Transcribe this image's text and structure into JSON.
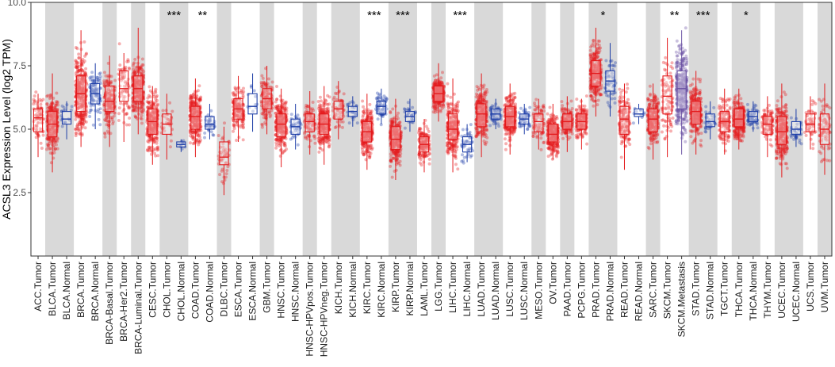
{
  "chart_data": {
    "type": "boxplot",
    "title": "",
    "xlabel": "",
    "ylabel": "ACSL3 Expression Level (log2 TPM)",
    "ylim": [
      0,
      10
    ],
    "yticks": [
      2.5,
      5.0,
      7.5,
      10.0
    ],
    "ytick_labels": [
      "2.5",
      "5.0",
      "7.5",
      "10.0"
    ],
    "grid": false,
    "legend": "none",
    "colors": {
      "tumor": "#e41a1c",
      "normal": "#1f3fa8",
      "metastasis": "#6a51a3",
      "shade": "#d9d9d9"
    },
    "groups": [
      {
        "label": "ACC",
        "significance": ""
      },
      {
        "label": "BLCA",
        "significance": ""
      },
      {
        "label": "BRCA",
        "significance": ""
      },
      {
        "label": "BRCA-Basal",
        "significance": ""
      },
      {
        "label": "BRCA-Her2",
        "significance": ""
      },
      {
        "label": "BRCA-Luminal",
        "significance": ""
      },
      {
        "label": "CESC",
        "significance": ""
      },
      {
        "label": "CHOL",
        "significance": "***"
      },
      {
        "label": "COAD",
        "significance": "**"
      },
      {
        "label": "DLBC",
        "significance": ""
      },
      {
        "label": "ESCA",
        "significance": ""
      },
      {
        "label": "GBM",
        "significance": ""
      },
      {
        "label": "HNSC",
        "significance": ""
      },
      {
        "label": "HNSC-HPVpos",
        "significance": ""
      },
      {
        "label": "HNSC-HPVneg",
        "significance": ""
      },
      {
        "label": "KICH",
        "significance": ""
      },
      {
        "label": "KIRC",
        "significance": "***"
      },
      {
        "label": "KIRP",
        "significance": "***"
      },
      {
        "label": "LAML",
        "significance": ""
      },
      {
        "label": "LGG",
        "significance": ""
      },
      {
        "label": "LIHC",
        "significance": "***"
      },
      {
        "label": "LUAD",
        "significance": ""
      },
      {
        "label": "LUSC",
        "significance": ""
      },
      {
        "label": "MESO",
        "significance": ""
      },
      {
        "label": "OV",
        "significance": ""
      },
      {
        "label": "PAAD",
        "significance": ""
      },
      {
        "label": "PCPG",
        "significance": ""
      },
      {
        "label": "PRAD",
        "significance": "*"
      },
      {
        "label": "READ",
        "significance": ""
      },
      {
        "label": "SARC",
        "significance": ""
      },
      {
        "label": "SKCM",
        "significance": "**"
      },
      {
        "label": "STAD",
        "significance": "***"
      },
      {
        "label": "TGCT",
        "significance": ""
      },
      {
        "label": "THCA",
        "significance": "*"
      },
      {
        "label": "THYM",
        "significance": ""
      },
      {
        "label": "UCEC",
        "significance": ""
      },
      {
        "label": "UCS",
        "significance": ""
      },
      {
        "label": "UVM",
        "significance": ""
      }
    ],
    "boxes": [
      {
        "label": "ACC.Tumor",
        "group": 0,
        "kind": "tumor",
        "q1": 4.9,
        "median": 5.45,
        "q3": 5.8,
        "whisker_low": 3.9,
        "whisker_high": 6.4,
        "n": 79
      },
      {
        "label": "BLCA.Tumor",
        "group": 1,
        "kind": "tumor",
        "q1": 4.7,
        "median": 5.2,
        "q3": 5.7,
        "whisker_low": 3.3,
        "whisker_high": 7.2,
        "n": 300
      },
      {
        "label": "BLCA.Normal",
        "group": 1,
        "kind": "normal",
        "q1": 5.2,
        "median": 5.4,
        "q3": 5.7,
        "whisker_low": 4.6,
        "whisker_high": 6.1,
        "n": 19
      },
      {
        "label": "BRCA.Tumor",
        "group": 2,
        "kind": "tumor",
        "q1": 5.7,
        "median": 6.4,
        "q3": 7.1,
        "whisker_low": 4.3,
        "whisker_high": 8.9,
        "n": 400
      },
      {
        "label": "BRCA.Normal",
        "group": 2,
        "kind": "normal",
        "q1": 6.0,
        "median": 6.4,
        "q3": 6.8,
        "whisker_low": 5.0,
        "whisker_high": 7.6,
        "n": 113
      },
      {
        "label": "BRCA-Basal.Tumor",
        "group": 3,
        "kind": "tumor",
        "q1": 5.7,
        "median": 6.1,
        "q3": 6.7,
        "whisker_low": 4.3,
        "whisker_high": 7.9,
        "n": 190
      },
      {
        "label": "BRCA-Her2.Tumor",
        "group": 4,
        "kind": "tumor",
        "q1": 6.1,
        "median": 6.6,
        "q3": 7.3,
        "whisker_low": 4.5,
        "whisker_high": 8.0,
        "n": 82
      },
      {
        "label": "BRCA-Luminal.Tumor",
        "group": 5,
        "kind": "tumor",
        "q1": 6.1,
        "median": 6.6,
        "q3": 7.1,
        "whisker_low": 4.8,
        "whisker_high": 9.0,
        "n": 300
      },
      {
        "label": "CESC.Tumor",
        "group": 6,
        "kind": "tumor",
        "q1": 4.8,
        "median": 5.3,
        "q3": 5.8,
        "whisker_low": 3.6,
        "whisker_high": 6.7,
        "n": 305
      },
      {
        "label": "CHOL.Tumor",
        "group": 7,
        "kind": "tumor",
        "q1": 4.8,
        "median": 5.2,
        "q3": 5.6,
        "whisker_low": 3.8,
        "whisker_high": 6.4,
        "n": 36
      },
      {
        "label": "CHOL.Normal",
        "group": 7,
        "kind": "normal",
        "q1": 4.3,
        "median": 4.4,
        "q3": 4.5,
        "whisker_low": 4.1,
        "whisker_high": 4.6,
        "n": 9
      },
      {
        "label": "COAD.Tumor",
        "group": 8,
        "kind": "tumor",
        "q1": 5.0,
        "median": 5.5,
        "q3": 5.9,
        "whisker_low": 3.9,
        "whisker_high": 7.0,
        "n": 300
      },
      {
        "label": "COAD.Normal",
        "group": 8,
        "kind": "normal",
        "q1": 5.0,
        "median": 5.2,
        "q3": 5.5,
        "whisker_low": 4.6,
        "whisker_high": 6.0,
        "n": 41
      },
      {
        "label": "DLBC.Tumor",
        "group": 9,
        "kind": "tumor",
        "q1": 3.6,
        "median": 3.9,
        "q3": 4.5,
        "whisker_low": 2.4,
        "whisker_high": 5.1,
        "n": 48
      },
      {
        "label": "ESCA.Tumor",
        "group": 10,
        "kind": "tumor",
        "q1": 5.4,
        "median": 5.8,
        "q3": 6.2,
        "whisker_low": 4.5,
        "whisker_high": 7.1,
        "n": 184
      },
      {
        "label": "ESCA.Normal",
        "group": 10,
        "kind": "normal",
        "q1": 5.6,
        "median": 5.9,
        "q3": 6.4,
        "whisker_low": 4.9,
        "whisker_high": 7.2,
        "n": 11
      },
      {
        "label": "GBM.Tumor",
        "group": 11,
        "kind": "tumor",
        "q1": 5.8,
        "median": 6.2,
        "q3": 6.6,
        "whisker_low": 4.8,
        "whisker_high": 7.5,
        "n": 153
      },
      {
        "label": "HNSC.Tumor",
        "group": 12,
        "kind": "tumor",
        "q1": 4.7,
        "median": 5.2,
        "q3": 5.6,
        "whisker_low": 3.5,
        "whisker_high": 6.6,
        "n": 300
      },
      {
        "label": "HNSC.Normal",
        "group": 12,
        "kind": "normal",
        "q1": 4.8,
        "median": 5.1,
        "q3": 5.4,
        "whisker_low": 4.2,
        "whisker_high": 6.0,
        "n": 44
      },
      {
        "label": "HNSC-HPVpos.Tumor",
        "group": 13,
        "kind": "tumor",
        "q1": 4.9,
        "median": 5.3,
        "q3": 5.6,
        "whisker_low": 4.0,
        "whisker_high": 6.5,
        "n": 98
      },
      {
        "label": "HNSC-HPVneg.Tumor",
        "group": 14,
        "kind": "tumor",
        "q1": 4.8,
        "median": 5.2,
        "q3": 5.6,
        "whisker_low": 3.6,
        "whisker_high": 6.7,
        "n": 300
      },
      {
        "label": "KICH.Tumor",
        "group": 15,
        "kind": "tumor",
        "q1": 5.4,
        "median": 5.8,
        "q3": 6.1,
        "whisker_low": 4.6,
        "whisker_high": 6.9,
        "n": 66
      },
      {
        "label": "KICH.Normal",
        "group": 15,
        "kind": "normal",
        "q1": 5.5,
        "median": 5.7,
        "q3": 5.9,
        "whisker_low": 5.1,
        "whisker_high": 6.3,
        "n": 25
      },
      {
        "label": "KIRC.Tumor",
        "group": 16,
        "kind": "tumor",
        "q1": 4.5,
        "median": 4.9,
        "q3": 5.3,
        "whisker_low": 3.4,
        "whisker_high": 6.4,
        "n": 300
      },
      {
        "label": "KIRC.Normal",
        "group": 16,
        "kind": "normal",
        "q1": 5.6,
        "median": 5.9,
        "q3": 6.1,
        "whisker_low": 5.2,
        "whisker_high": 6.6,
        "n": 72
      },
      {
        "label": "KIRP.Tumor",
        "group": 17,
        "kind": "tumor",
        "q1": 4.2,
        "median": 4.6,
        "q3": 5.1,
        "whisker_low": 3.0,
        "whisker_high": 6.2,
        "n": 290
      },
      {
        "label": "KIRP.Normal",
        "group": 17,
        "kind": "normal",
        "q1": 5.3,
        "median": 5.5,
        "q3": 5.7,
        "whisker_low": 4.9,
        "whisker_high": 6.2,
        "n": 32
      },
      {
        "label": "LAML.Tumor",
        "group": 18,
        "kind": "tumor",
        "q1": 4.1,
        "median": 4.4,
        "q3": 4.7,
        "whisker_low": 3.3,
        "whisker_high": 5.4,
        "n": 173
      },
      {
        "label": "LGG.Tumor",
        "group": 19,
        "kind": "tumor",
        "q1": 6.1,
        "median": 6.4,
        "q3": 6.7,
        "whisker_low": 5.3,
        "whisker_high": 7.6,
        "n": 300
      },
      {
        "label": "LIHC.Tumor",
        "group": 20,
        "kind": "tumor",
        "q1": 4.6,
        "median": 5.0,
        "q3": 5.6,
        "whisker_low": 3.3,
        "whisker_high": 7.0,
        "n": 300
      },
      {
        "label": "LIHC.Normal",
        "group": 20,
        "kind": "normal",
        "q1": 4.1,
        "median": 4.4,
        "q3": 4.7,
        "whisker_low": 3.7,
        "whisker_high": 5.2,
        "n": 50
      },
      {
        "label": "LUAD.Tumor",
        "group": 21,
        "kind": "tumor",
        "q1": 5.1,
        "median": 5.6,
        "q3": 6.0,
        "whisker_low": 3.9,
        "whisker_high": 7.2,
        "n": 300
      },
      {
        "label": "LUAD.Normal",
        "group": 21,
        "kind": "normal",
        "q1": 5.4,
        "median": 5.6,
        "q3": 5.8,
        "whisker_low": 5.0,
        "whisker_high": 6.2,
        "n": 59
      },
      {
        "label": "LUSC.Tumor",
        "group": 22,
        "kind": "tumor",
        "q1": 5.1,
        "median": 5.5,
        "q3": 5.9,
        "whisker_low": 4.0,
        "whisker_high": 6.8,
        "n": 300
      },
      {
        "label": "LUSC.Normal",
        "group": 22,
        "kind": "normal",
        "q1": 5.2,
        "median": 5.4,
        "q3": 5.6,
        "whisker_low": 4.8,
        "whisker_high": 6.0,
        "n": 51
      },
      {
        "label": "MESO.Tumor",
        "group": 23,
        "kind": "tumor",
        "q1": 4.9,
        "median": 5.3,
        "q3": 5.6,
        "whisker_low": 4.2,
        "whisker_high": 6.2,
        "n": 87
      },
      {
        "label": "OV.Tumor",
        "group": 24,
        "kind": "tumor",
        "q1": 4.5,
        "median": 4.8,
        "q3": 5.2,
        "whisker_low": 3.8,
        "whisker_high": 6.0,
        "n": 303
      },
      {
        "label": "PAAD.Tumor",
        "group": 25,
        "kind": "tumor",
        "q1": 5.0,
        "median": 5.3,
        "q3": 5.6,
        "whisker_low": 4.1,
        "whisker_high": 6.3,
        "n": 178
      },
      {
        "label": "PCPG.Tumor",
        "group": 26,
        "kind": "tumor",
        "q1": 5.0,
        "median": 5.3,
        "q3": 5.6,
        "whisker_low": 4.2,
        "whisker_high": 6.2,
        "n": 179
      },
      {
        "label": "PRAD.Tumor",
        "group": 27,
        "kind": "tumor",
        "q1": 6.7,
        "median": 7.2,
        "q3": 7.7,
        "whisker_low": 5.5,
        "whisker_high": 9.0,
        "n": 300
      },
      {
        "label": "PRAD.Normal",
        "group": 27,
        "kind": "normal",
        "q1": 6.5,
        "median": 6.9,
        "q3": 7.3,
        "whisker_low": 5.5,
        "whisker_high": 8.4,
        "n": 52
      },
      {
        "label": "READ.Tumor",
        "group": 28,
        "kind": "tumor",
        "q1": 4.8,
        "median": 5.4,
        "q3": 5.9,
        "whisker_low": 3.4,
        "whisker_high": 6.8,
        "n": 166
      },
      {
        "label": "READ.Normal",
        "group": 28,
        "kind": "normal",
        "q1": 5.5,
        "median": 5.6,
        "q3": 5.8,
        "whisker_low": 5.2,
        "whisker_high": 6.0,
        "n": 10
      },
      {
        "label": "SARC.Tumor",
        "group": 29,
        "kind": "tumor",
        "q1": 4.9,
        "median": 5.4,
        "q3": 5.8,
        "whisker_low": 3.8,
        "whisker_high": 6.8,
        "n": 259
      },
      {
        "label": "SKCM.Tumor",
        "group": 30,
        "kind": "tumor",
        "q1": 5.6,
        "median": 6.3,
        "q3": 7.1,
        "whisker_low": 3.9,
        "whisker_high": 8.6,
        "n": 103
      },
      {
        "label": "SKCM.Metastasis",
        "group": 30,
        "kind": "metastasis",
        "q1": 5.8,
        "median": 6.6,
        "q3": 7.3,
        "whisker_low": 4.0,
        "whisker_high": 8.9,
        "n": 368
      },
      {
        "label": "STAD.Tumor",
        "group": 31,
        "kind": "tumor",
        "q1": 5.2,
        "median": 5.7,
        "q3": 6.1,
        "whisker_low": 4.0,
        "whisker_high": 7.3,
        "n": 300
      },
      {
        "label": "STAD.Normal",
        "group": 31,
        "kind": "normal",
        "q1": 5.1,
        "median": 5.3,
        "q3": 5.6,
        "whisker_low": 4.6,
        "whisker_high": 6.1,
        "n": 35
      },
      {
        "label": "TGCT.Tumor",
        "group": 32,
        "kind": "tumor",
        "q1": 4.9,
        "median": 5.3,
        "q3": 5.7,
        "whisker_low": 4.0,
        "whisker_high": 6.6,
        "n": 150
      },
      {
        "label": "THCA.Tumor",
        "group": 33,
        "kind": "tumor",
        "q1": 5.1,
        "median": 5.4,
        "q3": 5.8,
        "whisker_low": 4.2,
        "whisker_high": 6.6,
        "n": 300
      },
      {
        "label": "THCA.Normal",
        "group": 33,
        "kind": "normal",
        "q1": 5.3,
        "median": 5.5,
        "q3": 5.7,
        "whisker_low": 4.9,
        "whisker_high": 6.1,
        "n": 59
      },
      {
        "label": "THYM.Tumor",
        "group": 34,
        "kind": "tumor",
        "q1": 4.8,
        "median": 5.2,
        "q3": 5.5,
        "whisker_low": 3.9,
        "whisker_high": 6.3,
        "n": 120
      },
      {
        "label": "UCEC.Tumor",
        "group": 35,
        "kind": "tumor",
        "q1": 4.4,
        "median": 4.9,
        "q3": 5.5,
        "whisker_low": 3.1,
        "whisker_high": 6.8,
        "n": 300
      },
      {
        "label": "UCEC.Normal",
        "group": 35,
        "kind": "normal",
        "q1": 4.8,
        "median": 5.0,
        "q3": 5.3,
        "whisker_low": 4.3,
        "whisker_high": 5.8,
        "n": 35
      },
      {
        "label": "UCS.Tumor",
        "group": 36,
        "kind": "tumor",
        "q1": 4.9,
        "median": 5.2,
        "q3": 5.6,
        "whisker_low": 4.2,
        "whisker_high": 6.3,
        "n": 57
      },
      {
        "label": "UVM.Tumor",
        "group": 37,
        "kind": "tumor",
        "q1": 4.4,
        "median": 5.0,
        "q3": 5.6,
        "whisker_low": 3.2,
        "whisker_high": 6.8,
        "n": 80
      }
    ]
  }
}
